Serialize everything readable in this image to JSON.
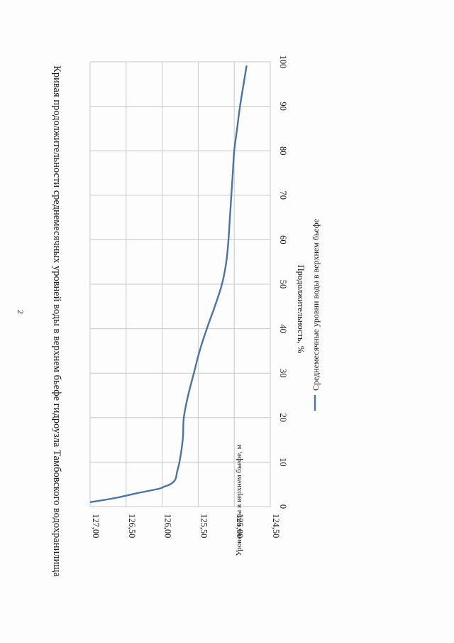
{
  "page": {
    "number": "2"
  },
  "chart_data": {
    "type": "line",
    "title": "Кривая продолжительности среднемесячных уровней воды в верхнем бьефе гидроузла Тамбовского водохранилища",
    "xlabel": "Продолжительность, %",
    "ylabel": "Уровень воды в верхнем бьефе, м",
    "xlim": [
      0,
      100
    ],
    "ylim": [
      124.5,
      127.0
    ],
    "x_ticks": [
      "0",
      "10",
      "20",
      "30",
      "40",
      "50",
      "60",
      "70",
      "80",
      "90",
      "100"
    ],
    "y_ticks": [
      "124,50",
      "125,00",
      "125,50",
      "126,00",
      "126,50",
      "127,00"
    ],
    "grid": true,
    "legend_position": "bottom",
    "orientation": "rotated-90-clockwise",
    "series": [
      {
        "name": "Среднемесячные уровни воды в верхнем бьефе",
        "color": "#4a73a6",
        "x": [
          1,
          2,
          3,
          4,
          4.5,
          5,
          6,
          8,
          10,
          13,
          16,
          20,
          25,
          30,
          35,
          40,
          45,
          50,
          55,
          60,
          65,
          70,
          75,
          80,
          85,
          90,
          95,
          99
        ],
        "y": [
          126.99,
          126.63,
          126.35,
          126.05,
          125.97,
          125.89,
          125.82,
          125.79,
          125.76,
          125.73,
          125.71,
          125.7,
          125.64,
          125.56,
          125.48,
          125.38,
          125.27,
          125.17,
          125.11,
          125.08,
          125.06,
          125.04,
          125.02,
          125.0,
          124.96,
          124.92,
          124.87,
          124.83
        ]
      }
    ]
  }
}
